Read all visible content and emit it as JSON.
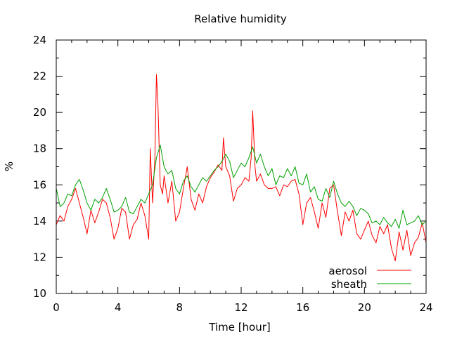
{
  "chart_data": {
    "type": "line",
    "title": "Relative humidity",
    "xlabel": "Time [hour]",
    "ylabel": "%",
    "xlim": [
      0,
      24
    ],
    "ylim": [
      10,
      24
    ],
    "xticks": [
      "0",
      "4",
      "8",
      "12",
      "16",
      "20",
      "24"
    ],
    "yticks": [
      "10",
      "12",
      "14",
      "16",
      "18",
      "20",
      "22",
      "24"
    ],
    "grid": false,
    "legend_position": "bottom-right",
    "series": [
      {
        "name": "aerosol",
        "color": "#ff0000",
        "x": [
          0,
          0.25,
          0.5,
          0.75,
          1,
          1.25,
          1.5,
          1.75,
          2,
          2.25,
          2.5,
          2.75,
          3,
          3.25,
          3.5,
          3.75,
          4,
          4.25,
          4.5,
          4.75,
          5,
          5.25,
          5.5,
          5.75,
          6,
          6.1,
          6.25,
          6.4,
          6.5,
          6.6,
          6.75,
          6.9,
          7,
          7.25,
          7.5,
          7.75,
          8,
          8.25,
          8.5,
          8.75,
          9,
          9.25,
          9.5,
          9.75,
          10,
          10.25,
          10.5,
          10.75,
          10.85,
          11,
          11.25,
          11.5,
          11.75,
          12,
          12.25,
          12.5,
          12.65,
          12.75,
          12.9,
          13,
          13.25,
          13.5,
          13.75,
          14,
          14.25,
          14.5,
          14.75,
          15,
          15.25,
          15.5,
          15.75,
          16,
          16.25,
          16.5,
          16.75,
          17,
          17.25,
          17.5,
          17.75,
          18,
          18.25,
          18.5,
          18.75,
          19,
          19.25,
          19.5,
          19.75,
          20,
          20.25,
          20.5,
          20.75,
          21,
          21.25,
          21.5,
          21.75,
          22,
          22.25,
          22.5,
          22.75,
          23,
          23.25,
          23.5,
          23.75,
          24
        ],
        "y": [
          13.8,
          14.3,
          14.0,
          14.8,
          15.2,
          15.8,
          15.0,
          14.2,
          13.3,
          14.6,
          13.9,
          14.5,
          15.2,
          15.0,
          14.2,
          13.0,
          13.6,
          14.7,
          14.5,
          13.0,
          13.8,
          14.1,
          15.0,
          14.3,
          13.0,
          18.0,
          15.0,
          17.5,
          22.1,
          20.5,
          16.0,
          15.5,
          16.5,
          15.0,
          16.2,
          14.0,
          14.5,
          15.8,
          17.0,
          15.2,
          14.6,
          15.5,
          15.0,
          15.9,
          16.4,
          16.7,
          17.1,
          16.8,
          18.6,
          17.0,
          16.5,
          15.1,
          15.8,
          16.0,
          16.4,
          16.2,
          17.5,
          20.1,
          17.0,
          16.2,
          16.6,
          16.0,
          15.8,
          15.8,
          15.9,
          15.4,
          16.0,
          15.9,
          16.2,
          16.3,
          15.5,
          13.8,
          15.0,
          15.3,
          14.5,
          13.6,
          15.0,
          14.2,
          15.8,
          16.0,
          14.5,
          13.2,
          14.5,
          14.0,
          14.6,
          13.3,
          13.0,
          13.5,
          14.0,
          13.2,
          12.8,
          13.7,
          13.3,
          13.8,
          12.5,
          11.8,
          13.4,
          12.4,
          13.5,
          12.1,
          12.8,
          13.1,
          13.9,
          12.8
        ]
      },
      {
        "name": "sheath",
        "color": "#00a000",
        "x": [
          0,
          0.25,
          0.5,
          0.75,
          1,
          1.25,
          1.5,
          1.75,
          2,
          2.25,
          2.5,
          2.75,
          3,
          3.25,
          3.5,
          3.75,
          4,
          4.25,
          4.5,
          4.75,
          5,
          5.25,
          5.5,
          5.75,
          6,
          6.25,
          6.5,
          6.75,
          7,
          7.25,
          7.5,
          7.75,
          8,
          8.25,
          8.5,
          8.75,
          9,
          9.25,
          9.5,
          9.75,
          10,
          10.25,
          10.5,
          10.75,
          11,
          11.25,
          11.5,
          11.75,
          12,
          12.25,
          12.5,
          12.75,
          13,
          13.25,
          13.5,
          13.75,
          14,
          14.25,
          14.5,
          14.75,
          15,
          15.25,
          15.5,
          15.75,
          16,
          16.25,
          16.5,
          16.75,
          17,
          17.25,
          17.5,
          17.75,
          18,
          18.25,
          18.5,
          18.75,
          19,
          19.25,
          19.5,
          19.75,
          20,
          20.25,
          20.5,
          20.75,
          21,
          21.25,
          21.5,
          21.75,
          22,
          22.25,
          22.5,
          22.75,
          23,
          23.25,
          23.5,
          23.75,
          24
        ],
        "y": [
          15.8,
          14.8,
          15.0,
          15.5,
          15.4,
          16.0,
          16.3,
          15.7,
          15.0,
          14.6,
          15.2,
          15.0,
          15.3,
          15.8,
          15.2,
          14.5,
          14.6,
          14.8,
          15.3,
          14.5,
          14.4,
          14.8,
          15.2,
          15.0,
          15.5,
          16.0,
          17.5,
          18.2,
          17.0,
          16.6,
          16.8,
          15.8,
          15.5,
          16.2,
          16.5,
          15.9,
          15.6,
          16.0,
          16.4,
          16.2,
          16.5,
          16.8,
          17.0,
          17.3,
          17.7,
          17.3,
          16.4,
          16.8,
          17.2,
          17.0,
          17.5,
          18.1,
          17.2,
          17.7,
          17.0,
          16.5,
          16.9,
          16.0,
          16.5,
          16.4,
          16.9,
          16.5,
          17.0,
          16.1,
          16.0,
          16.6,
          15.6,
          15.9,
          15.2,
          15.1,
          15.8,
          15.3,
          16.2,
          15.5,
          15.0,
          14.8,
          15.1,
          14.8,
          14.3,
          14.7,
          14.6,
          14.4,
          13.9,
          14.0,
          13.8,
          14.2,
          13.9,
          13.7,
          14.1,
          13.6,
          14.6,
          13.8,
          13.9,
          14.0,
          14.3,
          13.8,
          14.0
        ]
      }
    ]
  }
}
